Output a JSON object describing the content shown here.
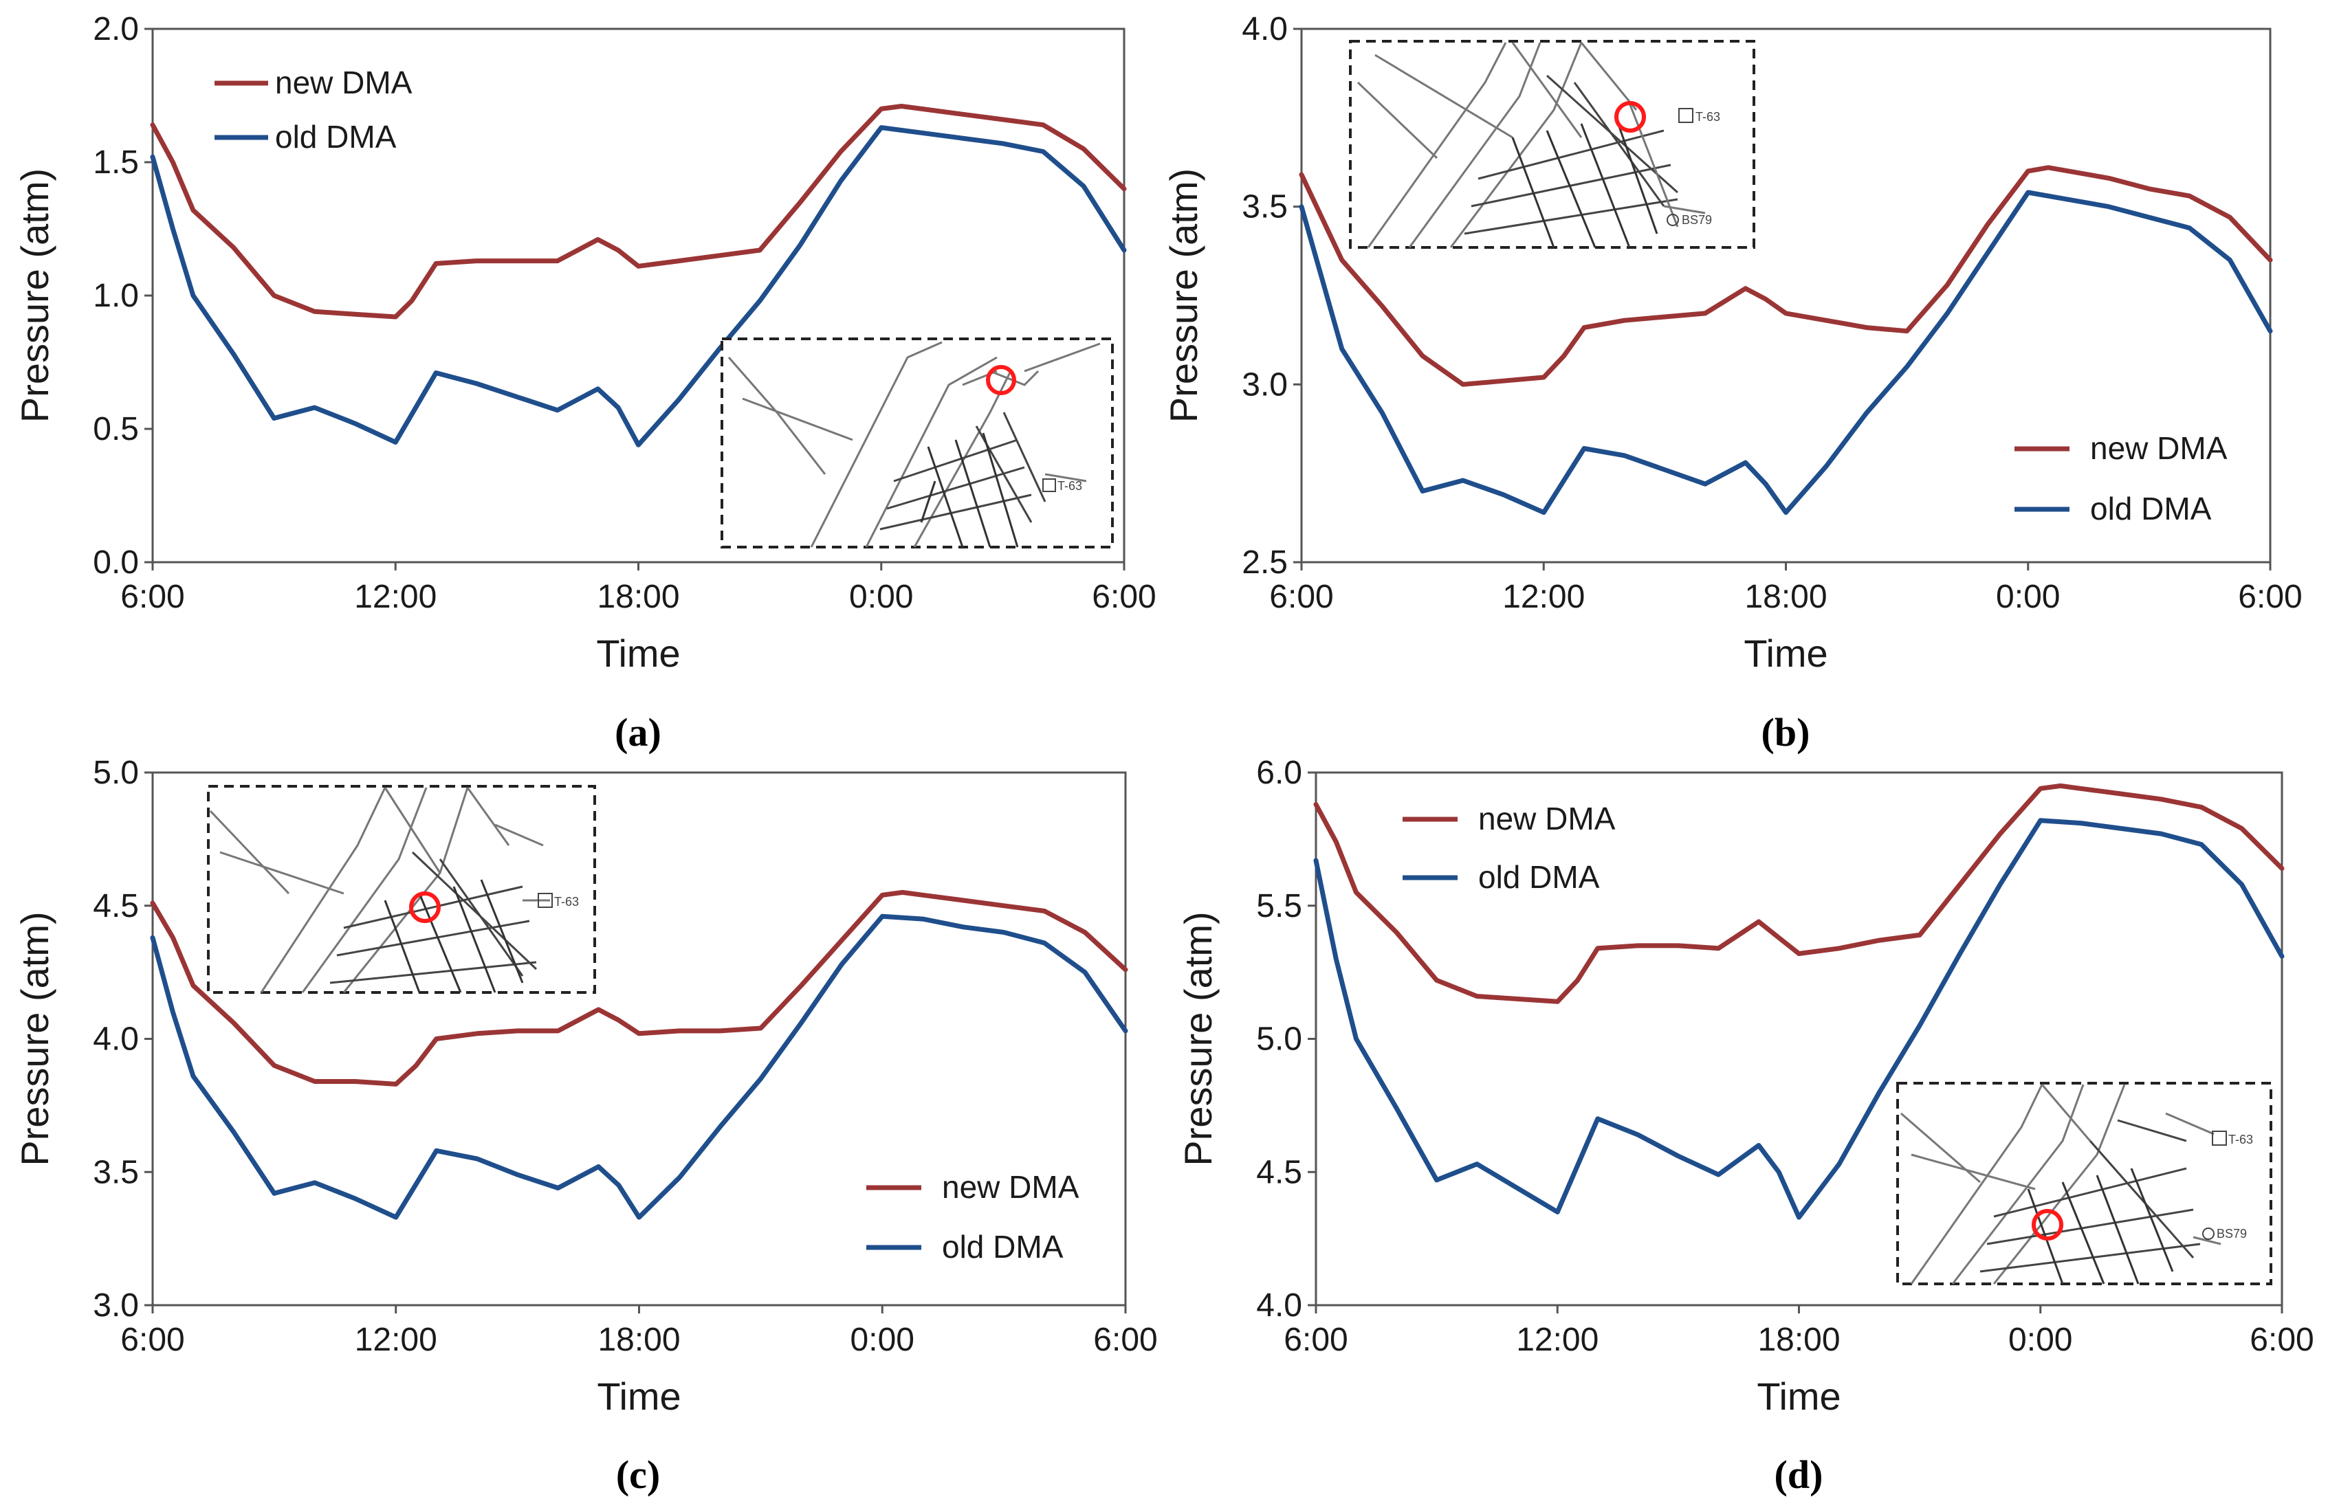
{
  "chart_data": [
    {
      "type": "line",
      "panel_label": "(a)",
      "xlabel": "Time",
      "ylabel": "Pressure (atm)",
      "ylim": [
        0.0,
        2.0
      ],
      "yticks": [
        "0.0",
        "0.5",
        "1.0",
        "1.5",
        "2.0"
      ],
      "x_range_hours": [
        6,
        30
      ],
      "xticks": [
        "6:00",
        "12:00",
        "18:00",
        "0:00",
        "6:00"
      ],
      "legend_position": "top-left",
      "series": [
        {
          "name": "new DMA",
          "color": "#9b3535",
          "points": [
            [
              6,
              1.64
            ],
            [
              6.5,
              1.5
            ],
            [
              7,
              1.32
            ],
            [
              8,
              1.18
            ],
            [
              9,
              1.0
            ],
            [
              10,
              0.94
            ],
            [
              11,
              0.93
            ],
            [
              12,
              0.92
            ],
            [
              12.4,
              0.98
            ],
            [
              13,
              1.12
            ],
            [
              14,
              1.13
            ],
            [
              15,
              1.13
            ],
            [
              16,
              1.13
            ],
            [
              17,
              1.21
            ],
            [
              17.5,
              1.17
            ],
            [
              18,
              1.11
            ],
            [
              19,
              1.13
            ],
            [
              20,
              1.15
            ],
            [
              21,
              1.17
            ],
            [
              22,
              1.35
            ],
            [
              23,
              1.54
            ],
            [
              24,
              1.7
            ],
            [
              24.5,
              1.71
            ],
            [
              25,
              1.7
            ],
            [
              26,
              1.68
            ],
            [
              27,
              1.66
            ],
            [
              28,
              1.64
            ],
            [
              29,
              1.55
            ],
            [
              30,
              1.4
            ]
          ]
        },
        {
          "name": "old DMA",
          "color": "#1f4e8c",
          "points": [
            [
              6,
              1.52
            ],
            [
              6.5,
              1.25
            ],
            [
              7,
              1.0
            ],
            [
              8,
              0.78
            ],
            [
              9,
              0.54
            ],
            [
              10,
              0.58
            ],
            [
              11,
              0.52
            ],
            [
              12,
              0.45
            ],
            [
              13,
              0.71
            ],
            [
              14,
              0.67
            ],
            [
              15,
              0.62
            ],
            [
              16,
              0.57
            ],
            [
              17,
              0.65
            ],
            [
              17.5,
              0.58
            ],
            [
              18,
              0.44
            ],
            [
              19,
              0.61
            ],
            [
              20,
              0.8
            ],
            [
              21,
              0.98
            ],
            [
              22,
              1.19
            ],
            [
              23,
              1.43
            ],
            [
              24,
              1.63
            ],
            [
              25,
              1.61
            ],
            [
              26,
              1.59
            ],
            [
              27,
              1.57
            ],
            [
              28,
              1.54
            ],
            [
              29,
              1.41
            ],
            [
              30,
              1.17
            ]
          ]
        }
      ],
      "inset_labels": [
        "T-63"
      ]
    },
    {
      "type": "line",
      "panel_label": "(b)",
      "xlabel": "Time",
      "ylabel": "Pressure (atm)",
      "ylim": [
        2.5,
        4.0
      ],
      "yticks": [
        "2.5",
        "3.0",
        "3.5",
        "4.0"
      ],
      "x_range_hours": [
        6,
        30
      ],
      "xticks": [
        "6:00",
        "12:00",
        "18:00",
        "0:00",
        "6:00"
      ],
      "legend_position": "bottom-right",
      "series": [
        {
          "name": "new DMA",
          "color": "#9b3535",
          "points": [
            [
              6,
              3.59
            ],
            [
              6.5,
              3.47
            ],
            [
              7,
              3.35
            ],
            [
              8,
              3.22
            ],
            [
              9,
              3.08
            ],
            [
              10,
              3.0
            ],
            [
              11,
              3.01
            ],
            [
              12,
              3.02
            ],
            [
              12.5,
              3.08
            ],
            [
              13,
              3.16
            ],
            [
              14,
              3.18
            ],
            [
              15,
              3.19
            ],
            [
              16,
              3.2
            ],
            [
              17,
              3.27
            ],
            [
              17.5,
              3.24
            ],
            [
              18,
              3.2
            ],
            [
              19,
              3.18
            ],
            [
              20,
              3.16
            ],
            [
              21,
              3.15
            ],
            [
              22,
              3.28
            ],
            [
              23,
              3.45
            ],
            [
              24,
              3.6
            ],
            [
              24.5,
              3.61
            ],
            [
              25,
              3.6
            ],
            [
              26,
              3.58
            ],
            [
              27,
              3.55
            ],
            [
              28,
              3.53
            ],
            [
              29,
              3.47
            ],
            [
              30,
              3.35
            ]
          ]
        },
        {
          "name": "old DMA",
          "color": "#1f4e8c",
          "points": [
            [
              6,
              3.5
            ],
            [
              6.5,
              3.3
            ],
            [
              7,
              3.1
            ],
            [
              8,
              2.92
            ],
            [
              9,
              2.7
            ],
            [
              10,
              2.73
            ],
            [
              11,
              2.69
            ],
            [
              12,
              2.64
            ],
            [
              13,
              2.82
            ],
            [
              14,
              2.8
            ],
            [
              15,
              2.76
            ],
            [
              16,
              2.72
            ],
            [
              17,
              2.78
            ],
            [
              17.5,
              2.72
            ],
            [
              18,
              2.64
            ],
            [
              19,
              2.77
            ],
            [
              20,
              2.92
            ],
            [
              21,
              3.05
            ],
            [
              22,
              3.2
            ],
            [
              23,
              3.37
            ],
            [
              24,
              3.54
            ],
            [
              25,
              3.52
            ],
            [
              26,
              3.5
            ],
            [
              27,
              3.47
            ],
            [
              28,
              3.44
            ],
            [
              29,
              3.35
            ],
            [
              30,
              3.15
            ]
          ]
        }
      ],
      "inset_labels": [
        "T-63",
        "BS79"
      ]
    },
    {
      "type": "line",
      "panel_label": "(c)",
      "xlabel": "Time",
      "ylabel": "Pressure (atm)",
      "ylim": [
        3.0,
        5.0
      ],
      "yticks": [
        "3.0",
        "3.5",
        "4.0",
        "4.5",
        "5.0"
      ],
      "x_range_hours": [
        6,
        30
      ],
      "xticks": [
        "6:00",
        "12:00",
        "18:00",
        "0:00",
        "6:00"
      ],
      "legend_position": "bottom-right",
      "series": [
        {
          "name": "new DMA",
          "color": "#9b3535",
          "points": [
            [
              6,
              4.51
            ],
            [
              6.5,
              4.38
            ],
            [
              7,
              4.2
            ],
            [
              8,
              4.06
            ],
            [
              9,
              3.9
            ],
            [
              10,
              3.84
            ],
            [
              11,
              3.84
            ],
            [
              12,
              3.83
            ],
            [
              12.5,
              3.9
            ],
            [
              13,
              4.0
            ],
            [
              14,
              4.02
            ],
            [
              15,
              4.03
            ],
            [
              16,
              4.03
            ],
            [
              17,
              4.11
            ],
            [
              17.5,
              4.07
            ],
            [
              18,
              4.02
            ],
            [
              19,
              4.03
            ],
            [
              20,
              4.03
            ],
            [
              21,
              4.04
            ],
            [
              22,
              4.2
            ],
            [
              23,
              4.37
            ],
            [
              24,
              4.54
            ],
            [
              24.5,
              4.55
            ],
            [
              25,
              4.54
            ],
            [
              26,
              4.52
            ],
            [
              27,
              4.5
            ],
            [
              28,
              4.48
            ],
            [
              29,
              4.4
            ],
            [
              30,
              4.26
            ]
          ]
        },
        {
          "name": "old DMA",
          "color": "#1f4e8c",
          "points": [
            [
              6,
              4.38
            ],
            [
              6.5,
              4.1
            ],
            [
              7,
              3.86
            ],
            [
              8,
              3.65
            ],
            [
              9,
              3.42
            ],
            [
              10,
              3.46
            ],
            [
              11,
              3.4
            ],
            [
              12,
              3.33
            ],
            [
              13,
              3.58
            ],
            [
              14,
              3.55
            ],
            [
              15,
              3.49
            ],
            [
              16,
              3.44
            ],
            [
              17,
              3.52
            ],
            [
              17.5,
              3.45
            ],
            [
              18,
              3.33
            ],
            [
              19,
              3.48
            ],
            [
              20,
              3.67
            ],
            [
              21,
              3.85
            ],
            [
              22,
              4.06
            ],
            [
              23,
              4.28
            ],
            [
              24,
              4.46
            ],
            [
              25,
              4.45
            ],
            [
              26,
              4.42
            ],
            [
              27,
              4.4
            ],
            [
              28,
              4.36
            ],
            [
              29,
              4.25
            ],
            [
              30,
              4.03
            ]
          ]
        }
      ],
      "inset_labels": [
        "T-63"
      ]
    },
    {
      "type": "line",
      "panel_label": "(d)",
      "xlabel": "Time",
      "ylabel": "Pressure (atm)",
      "ylim": [
        4.0,
        6.0
      ],
      "yticks": [
        "4.0",
        "4.5",
        "5.0",
        "5.5",
        "6.0"
      ],
      "x_range_hours": [
        6,
        30
      ],
      "xticks": [
        "6:00",
        "12:00",
        "18:00",
        "0:00",
        "6:00"
      ],
      "legend_position": "top-left",
      "series": [
        {
          "name": "new DMA",
          "color": "#9b3535",
          "points": [
            [
              6,
              5.88
            ],
            [
              6.5,
              5.74
            ],
            [
              7,
              5.55
            ],
            [
              8,
              5.4
            ],
            [
              9,
              5.22
            ],
            [
              10,
              5.16
            ],
            [
              11,
              5.15
            ],
            [
              12,
              5.14
            ],
            [
              12.5,
              5.22
            ],
            [
              13,
              5.34
            ],
            [
              14,
              5.35
            ],
            [
              15,
              5.35
            ],
            [
              16,
              5.34
            ],
            [
              17,
              5.44
            ],
            [
              17.5,
              5.38
            ],
            [
              18,
              5.32
            ],
            [
              19,
              5.34
            ],
            [
              20,
              5.37
            ],
            [
              21,
              5.39
            ],
            [
              22,
              5.58
            ],
            [
              23,
              5.77
            ],
            [
              24,
              5.94
            ],
            [
              24.5,
              5.95
            ],
            [
              25,
              5.94
            ],
            [
              26,
              5.92
            ],
            [
              27,
              5.9
            ],
            [
              28,
              5.87
            ],
            [
              29,
              5.79
            ],
            [
              30,
              5.64
            ]
          ]
        },
        {
          "name": "old DMA",
          "color": "#1f4e8c",
          "points": [
            [
              6,
              5.67
            ],
            [
              6.5,
              5.3
            ],
            [
              7,
              5.0
            ],
            [
              8,
              4.74
            ],
            [
              9,
              4.47
            ],
            [
              10,
              4.53
            ],
            [
              11,
              4.44
            ],
            [
              12,
              4.35
            ],
            [
              13,
              4.7
            ],
            [
              14,
              4.64
            ],
            [
              15,
              4.56
            ],
            [
              16,
              4.49
            ],
            [
              17,
              4.6
            ],
            [
              17.5,
              4.5
            ],
            [
              18,
              4.33
            ],
            [
              19,
              4.53
            ],
            [
              20,
              4.8
            ],
            [
              21,
              5.05
            ],
            [
              22,
              5.32
            ],
            [
              23,
              5.58
            ],
            [
              24,
              5.82
            ],
            [
              25,
              5.81
            ],
            [
              26,
              5.79
            ],
            [
              27,
              5.77
            ],
            [
              28,
              5.73
            ],
            [
              29,
              5.58
            ],
            [
              30,
              5.31
            ]
          ]
        }
      ],
      "inset_labels": [
        "T-63",
        "BS79"
      ]
    }
  ]
}
